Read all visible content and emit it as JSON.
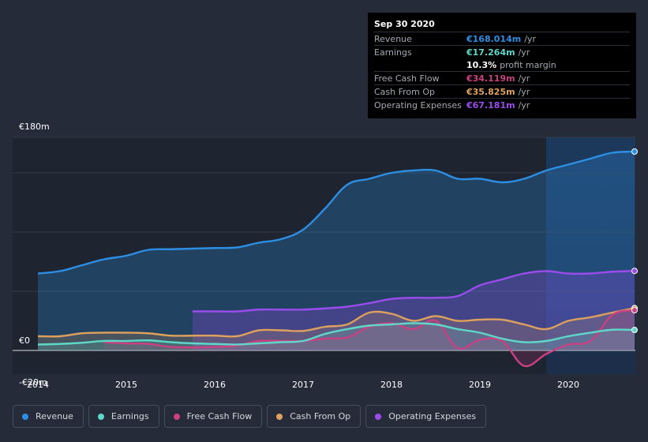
{
  "tooltip": {
    "date": "Sep 30 2020",
    "rows": {
      "revenue": {
        "label": "Revenue",
        "value": "€168.014m",
        "unit": "/yr"
      },
      "earnings": {
        "label": "Earnings",
        "value": "€17.264m",
        "unit": "/yr"
      },
      "margin": {
        "value": "10.3%",
        "unit": "profit margin"
      },
      "fcf": {
        "label": "Free Cash Flow",
        "value": "€34.119m",
        "unit": "/yr"
      },
      "cfo": {
        "label": "Cash From Op",
        "value": "€35.825m",
        "unit": "/yr"
      },
      "opex": {
        "label": "Operating Expenses",
        "value": "€67.181m",
        "unit": "/yr"
      }
    }
  },
  "colors": {
    "revenue": "#2d8fe3",
    "earnings": "#5ed8c8",
    "fcf": "#c94182",
    "cfo": "#dea15d",
    "opex": "#9b4cec"
  },
  "legend": [
    {
      "key": "revenue",
      "label": "Revenue"
    },
    {
      "key": "earnings",
      "label": "Earnings"
    },
    {
      "key": "fcf",
      "label": "Free Cash Flow"
    },
    {
      "key": "cfo",
      "label": "Cash From Op"
    },
    {
      "key": "opex",
      "label": "Operating Expenses"
    }
  ],
  "chart_data": {
    "type": "area",
    "title": "",
    "xlabel": "",
    "ylabel": "",
    "xlim": [
      2013.75,
      2020.75
    ],
    "ylim": [
      -20,
      180
    ],
    "y_tick_labels": [
      {
        "value": 180,
        "label": "€180m"
      },
      {
        "value": 0,
        "label": "€0"
      },
      {
        "value": -20,
        "label": "-€20m"
      }
    ],
    "x_ticks": [
      2014,
      2015,
      2016,
      2017,
      2018,
      2019,
      2020
    ],
    "x_tick_labels": [
      "2014",
      "2015",
      "2016",
      "2017",
      "2018",
      "2019",
      "2020"
    ],
    "highlight_start": 2019.75,
    "series": [
      {
        "key": "revenue",
        "name": "Revenue",
        "x": [
          2014,
          2014.25,
          2014.5,
          2014.75,
          2015,
          2015.25,
          2015.5,
          2015.75,
          2016,
          2016.25,
          2016.5,
          2016.75,
          2017,
          2017.25,
          2017.5,
          2017.75,
          2018,
          2018.25,
          2018.5,
          2018.75,
          2019,
          2019.25,
          2019.5,
          2019.75,
          2020,
          2020.25,
          2020.5,
          2020.75
        ],
        "values": [
          65,
          67,
          72,
          77,
          80,
          85,
          85.5,
          86,
          86.5,
          87,
          91,
          94,
          102,
          120,
          140,
          145,
          150,
          152,
          152,
          145,
          145,
          142,
          145,
          152,
          157,
          162,
          167,
          168
        ]
      },
      {
        "key": "earnings",
        "name": "Earnings",
        "x": [
          2014,
          2014.25,
          2014.5,
          2014.75,
          2015,
          2015.25,
          2015.5,
          2015.75,
          2016,
          2016.25,
          2016.5,
          2016.75,
          2017,
          2017.25,
          2017.5,
          2017.75,
          2018,
          2018.25,
          2018.5,
          2018.75,
          2019,
          2019.25,
          2019.5,
          2019.75,
          2020,
          2020.25,
          2020.5,
          2020.75
        ],
        "values": [
          5,
          5.5,
          6.5,
          8,
          8,
          8.5,
          7,
          6,
          5.5,
          5,
          6,
          7,
          8,
          14,
          18,
          21,
          22,
          23,
          22,
          18,
          15,
          10,
          7,
          8,
          12,
          15,
          17.5,
          17.3
        ]
      },
      {
        "key": "fcf",
        "name": "Free Cash Flow",
        "x": [
          2014.75,
          2015,
          2015.25,
          2015.5,
          2015.75,
          2016,
          2016.25,
          2016.5,
          2016.75,
          2017,
          2017.25,
          2017.5,
          2017.75,
          2018,
          2018.25,
          2018.5,
          2018.75,
          2019,
          2019.25,
          2019.5,
          2019.75,
          2020,
          2020.25,
          2020.5,
          2020.75
        ],
        "values": [
          7,
          6,
          5.5,
          3,
          2.5,
          3,
          4,
          8,
          8,
          8,
          10,
          11,
          20,
          23,
          18,
          25,
          2,
          9,
          8,
          -13,
          -3,
          5,
          8,
          30,
          34
        ]
      },
      {
        "key": "cfo",
        "name": "Cash From Op",
        "x": [
          2014,
          2014.25,
          2014.5,
          2014.75,
          2015,
          2015.25,
          2015.5,
          2015.75,
          2016,
          2016.25,
          2016.5,
          2016.75,
          2017,
          2017.25,
          2017.5,
          2017.75,
          2018,
          2018.25,
          2018.5,
          2018.75,
          2019,
          2019.25,
          2019.5,
          2019.75,
          2020,
          2020.25,
          2020.5,
          2020.75
        ],
        "values": [
          12,
          12,
          14.5,
          15,
          15,
          14.5,
          12.5,
          12.5,
          12.5,
          12,
          17,
          17,
          16.5,
          20,
          22,
          32,
          31,
          25,
          29,
          25,
          26,
          26,
          22,
          18,
          25,
          28,
          32,
          35.8
        ]
      },
      {
        "key": "opex",
        "name": "Operating Expenses",
        "x": [
          2015.75,
          2016,
          2016.25,
          2016.5,
          2016.75,
          2017,
          2017.25,
          2017.5,
          2017.75,
          2018,
          2018.25,
          2018.5,
          2018.75,
          2019,
          2019.25,
          2019.5,
          2019.75,
          2020,
          2020.25,
          2020.5,
          2020.75
        ],
        "values": [
          33,
          33,
          33,
          34.5,
          34.5,
          34.5,
          35.5,
          37,
          40,
          43.5,
          44.5,
          44.5,
          46,
          55,
          60,
          65,
          67,
          65,
          65,
          66.5,
          67.2
        ]
      }
    ]
  }
}
